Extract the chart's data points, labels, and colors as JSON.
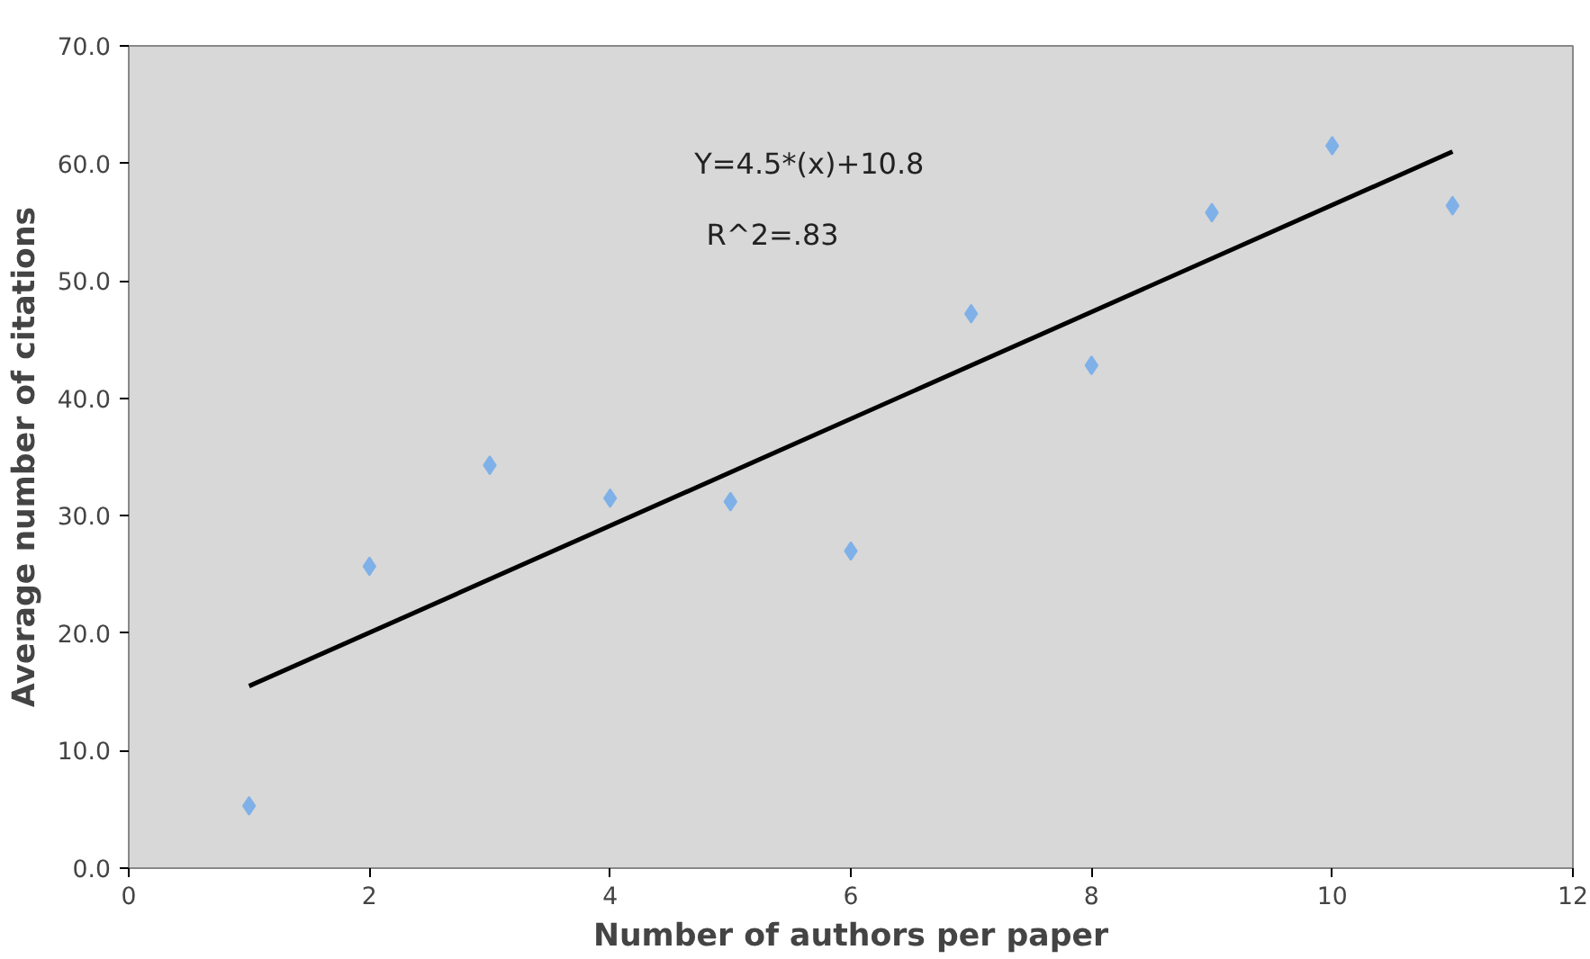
{
  "chart_data": {
    "type": "scatter",
    "xlabel": "Number of authors per paper",
    "ylabel": "Average number of citations",
    "annotations": [
      "Y=4.5*(x)+10.8",
      "R^2=.83"
    ],
    "x": [
      1,
      2,
      3,
      4,
      5,
      6,
      7,
      8,
      9,
      10,
      11
    ],
    "series": [
      {
        "color": "#7fb1e8",
        "marker": "diamond",
        "values": [
          5.3,
          25.7,
          34.3,
          31.5,
          31.2,
          27.0,
          47.2,
          42.8,
          55.8,
          61.5,
          56.4
        ]
      },
      {
        "type": "line",
        "marker": "none",
        "color": "#000000",
        "x": [
          1,
          11
        ],
        "values": [
          15.5,
          61.0
        ]
      }
    ],
    "grid": false,
    "xlim": [
      0,
      12
    ],
    "xticks": [
      0,
      2,
      4,
      6,
      8,
      10,
      12
    ],
    "ylim": [
      0,
      70
    ],
    "yticks": [
      {
        "value": 0,
        "label": "0.0"
      },
      {
        "value": 10,
        "label": "10.0"
      },
      {
        "value": 20,
        "label": "20.0"
      },
      {
        "value": 30,
        "label": "30.0"
      },
      {
        "value": 40,
        "label": "40.0"
      },
      {
        "value": 50,
        "label": "50.0"
      },
      {
        "value": 60,
        "label": "60.0"
      },
      {
        "value": 70,
        "label": "70.0"
      }
    ]
  }
}
